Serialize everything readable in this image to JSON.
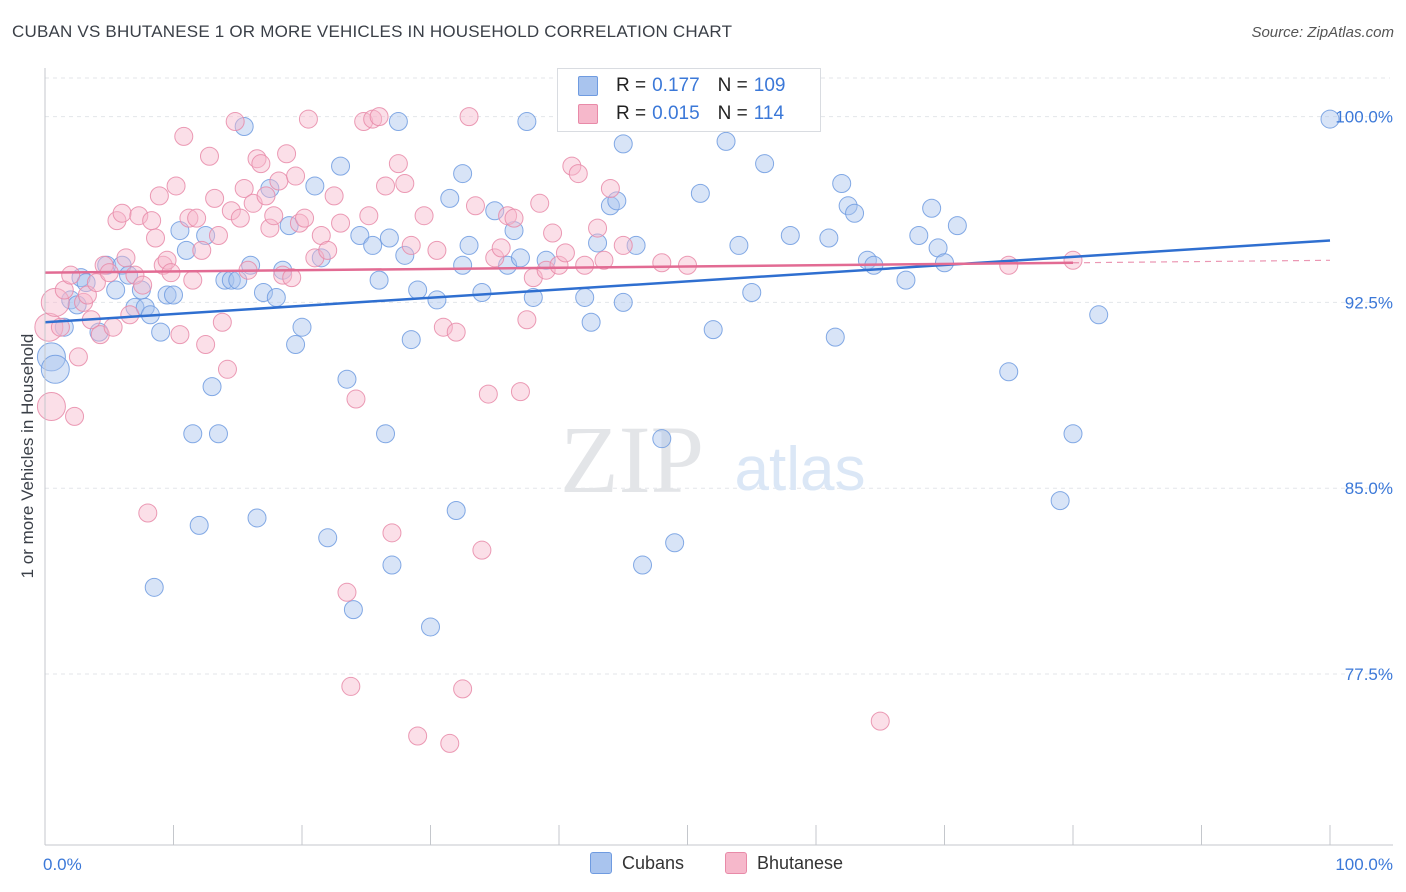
{
  "title": "CUBAN VS BHUTANESE 1 OR MORE VEHICLES IN HOUSEHOLD CORRELATION CHART",
  "source": "Source: ZipAtlas.com",
  "watermark": {
    "zip": "ZIP",
    "atlas": "atlas"
  },
  "legend": {
    "rows": [
      {
        "r_label": "R =",
        "r_value": "0.177",
        "n_label": "N =",
        "n_value": "109",
        "color": "#a9c4ee",
        "border": "#6f9be0"
      },
      {
        "r_label": "R =",
        "r_value": "0.015",
        "n_label": "N =",
        "n_value": "114",
        "color": "#f6b8cb",
        "border": "#e88aa8"
      }
    ]
  },
  "bottom_legend": [
    {
      "label": "Cubans",
      "color": "#a9c4ee",
      "border": "#6f9be0"
    },
    {
      "label": "Bhutanese",
      "color": "#f6b8cb",
      "border": "#e88aa8"
    }
  ],
  "chart_data": {
    "type": "scatter",
    "title": "CUBAN VS BHUTANESE 1 OR MORE VEHICLES IN HOUSEHOLD CORRELATION CHART",
    "xlabel": "",
    "ylabel": "1 or more Vehicles in Household",
    "xlim": [
      0,
      100
    ],
    "ylim": [
      70.6,
      101.8
    ],
    "x_tick_labels": [
      "0.0%",
      "100.0%"
    ],
    "y_ticks": [
      77.5,
      85.0,
      92.5,
      100.0
    ],
    "y_tick_labels": [
      "77.5%",
      "85.0%",
      "92.5%",
      "100.0%"
    ],
    "grid": true,
    "legend_position": "top-center",
    "series": [
      {
        "name": "Cubans",
        "color": "#6f9be0",
        "fill": "#a9c4ee",
        "trend": {
          "x": [
            0,
            100
          ],
          "y": [
            91.7,
            95.0
          ]
        },
        "points": [
          [
            0.5,
            90.3
          ],
          [
            0.8,
            89.8
          ],
          [
            1.5,
            91.5
          ],
          [
            2.0,
            92.6
          ],
          [
            2.5,
            92.4
          ],
          [
            2.8,
            93.5
          ],
          [
            3.2,
            93.3
          ],
          [
            4.2,
            91.3
          ],
          [
            4.8,
            94.0
          ],
          [
            5.5,
            93.0
          ],
          [
            6.0,
            94.0
          ],
          [
            6.5,
            93.6
          ],
          [
            7.0,
            92.3
          ],
          [
            7.5,
            93.0
          ],
          [
            7.8,
            92.3
          ],
          [
            8.2,
            92.0
          ],
          [
            8.5,
            81.0
          ],
          [
            9.0,
            91.3
          ],
          [
            9.5,
            92.8
          ],
          [
            10.0,
            92.8
          ],
          [
            10.5,
            95.4
          ],
          [
            11.0,
            94.6
          ],
          [
            11.5,
            87.2
          ],
          [
            12.0,
            83.5
          ],
          [
            12.5,
            95.2
          ],
          [
            13.0,
            89.1
          ],
          [
            13.5,
            87.2
          ],
          [
            14.0,
            93.4
          ],
          [
            14.5,
            93.4
          ],
          [
            15.0,
            93.4
          ],
          [
            15.5,
            99.6
          ],
          [
            16.0,
            94.0
          ],
          [
            16.5,
            83.8
          ],
          [
            17.0,
            92.9
          ],
          [
            17.5,
            97.1
          ],
          [
            18.0,
            92.7
          ],
          [
            18.5,
            93.8
          ],
          [
            19.0,
            95.6
          ],
          [
            19.5,
            90.8
          ],
          [
            20.0,
            91.5
          ],
          [
            21.0,
            97.2
          ],
          [
            21.5,
            94.3
          ],
          [
            22.0,
            83.0
          ],
          [
            23.0,
            98.0
          ],
          [
            23.5,
            89.4
          ],
          [
            24.0,
            80.1
          ],
          [
            24.5,
            95.2
          ],
          [
            25.5,
            94.8
          ],
          [
            26.0,
            93.4
          ],
          [
            26.5,
            87.2
          ],
          [
            27.0,
            81.9
          ],
          [
            27.5,
            99.8
          ],
          [
            28.0,
            94.4
          ],
          [
            28.5,
            91.0
          ],
          [
            29.0,
            93.0
          ],
          [
            30.0,
            79.4
          ],
          [
            30.5,
            92.6
          ],
          [
            31.5,
            96.7
          ],
          [
            32.0,
            84.1
          ],
          [
            32.5,
            94.0
          ],
          [
            33.0,
            94.8
          ],
          [
            34.0,
            92.9
          ],
          [
            35.0,
            96.2
          ],
          [
            36.0,
            94.0
          ],
          [
            36.5,
            95.4
          ],
          [
            37.0,
            94.3
          ],
          [
            37.5,
            99.8
          ],
          [
            38.0,
            92.7
          ],
          [
            39.0,
            94.2
          ],
          [
            42.0,
            92.7
          ],
          [
            42.5,
            91.7
          ],
          [
            43.0,
            94.9
          ],
          [
            44.0,
            96.4
          ],
          [
            44.5,
            96.6
          ],
          [
            45.0,
            92.5
          ],
          [
            46.0,
            94.8
          ],
          [
            46.5,
            81.9
          ],
          [
            48.0,
            87.0
          ],
          [
            49.0,
            82.8
          ],
          [
            51.0,
            96.9
          ],
          [
            52.0,
            91.4
          ],
          [
            53.0,
            99.0
          ],
          [
            54.0,
            94.8
          ],
          [
            55.0,
            92.9
          ],
          [
            56.0,
            98.1
          ],
          [
            58.0,
            95.2
          ],
          [
            61.0,
            95.1
          ],
          [
            61.5,
            91.1
          ],
          [
            62.0,
            97.3
          ],
          [
            62.5,
            96.4
          ],
          [
            63.0,
            96.1
          ],
          [
            64.0,
            94.2
          ],
          [
            64.5,
            94.0
          ],
          [
            67.0,
            93.4
          ],
          [
            68.0,
            95.2
          ],
          [
            69.0,
            96.3
          ],
          [
            69.5,
            94.7
          ],
          [
            70.0,
            94.1
          ],
          [
            71.0,
            95.6
          ],
          [
            75.0,
            89.7
          ],
          [
            79.0,
            84.5
          ],
          [
            80.0,
            87.2
          ],
          [
            82.0,
            92.0
          ],
          [
            100.0,
            99.9
          ],
          [
            32.5,
            97.7
          ],
          [
            45.0,
            98.9
          ],
          [
            26.8,
            95.1
          ]
        ]
      },
      {
        "name": "Bhutanese",
        "color": "#e88aa8",
        "fill": "#f6b8cb",
        "trend": {
          "x": [
            0,
            80
          ],
          "y": [
            93.7,
            94.1
          ]
        },
        "points": [
          [
            0.3,
            91.5
          ],
          [
            0.5,
            88.3
          ],
          [
            0.8,
            92.5
          ],
          [
            1.2,
            91.5
          ],
          [
            1.5,
            93.0
          ],
          [
            2.0,
            93.6
          ],
          [
            2.3,
            87.9
          ],
          [
            2.6,
            90.3
          ],
          [
            3.0,
            92.5
          ],
          [
            3.3,
            92.8
          ],
          [
            3.6,
            91.8
          ],
          [
            4.0,
            93.3
          ],
          [
            4.3,
            91.2
          ],
          [
            4.6,
            94.0
          ],
          [
            5.0,
            93.7
          ],
          [
            5.3,
            91.5
          ],
          [
            5.6,
            95.8
          ],
          [
            6.0,
            96.1
          ],
          [
            6.3,
            94.3
          ],
          [
            6.6,
            92.0
          ],
          [
            7.0,
            93.6
          ],
          [
            7.3,
            96.0
          ],
          [
            7.6,
            93.2
          ],
          [
            8.0,
            84.0
          ],
          [
            8.3,
            95.8
          ],
          [
            8.6,
            95.1
          ],
          [
            8.9,
            96.8
          ],
          [
            9.2,
            94.0
          ],
          [
            9.5,
            94.2
          ],
          [
            9.8,
            93.7
          ],
          [
            10.2,
            97.2
          ],
          [
            10.5,
            91.2
          ],
          [
            10.8,
            99.2
          ],
          [
            11.2,
            95.9
          ],
          [
            11.5,
            93.4
          ],
          [
            11.8,
            95.9
          ],
          [
            12.2,
            94.6
          ],
          [
            12.5,
            90.8
          ],
          [
            12.8,
            98.4
          ],
          [
            13.2,
            96.7
          ],
          [
            13.5,
            95.2
          ],
          [
            13.8,
            91.7
          ],
          [
            14.2,
            89.8
          ],
          [
            14.5,
            96.2
          ],
          [
            14.8,
            99.8
          ],
          [
            15.2,
            95.9
          ],
          [
            15.5,
            97.1
          ],
          [
            15.8,
            93.8
          ],
          [
            16.2,
            96.5
          ],
          [
            16.5,
            98.3
          ],
          [
            16.8,
            98.1
          ],
          [
            17.2,
            96.8
          ],
          [
            17.5,
            95.5
          ],
          [
            17.8,
            96.0
          ],
          [
            18.2,
            97.4
          ],
          [
            18.5,
            93.6
          ],
          [
            18.8,
            98.5
          ],
          [
            19.2,
            93.5
          ],
          [
            19.5,
            97.6
          ],
          [
            19.8,
            95.7
          ],
          [
            20.2,
            95.9
          ],
          [
            20.5,
            99.9
          ],
          [
            21.0,
            94.3
          ],
          [
            21.5,
            95.2
          ],
          [
            22.0,
            94.6
          ],
          [
            22.5,
            96.8
          ],
          [
            23.0,
            95.7
          ],
          [
            23.5,
            80.8
          ],
          [
            23.8,
            77.0
          ],
          [
            24.2,
            88.6
          ],
          [
            24.8,
            99.8
          ],
          [
            25.2,
            96.0
          ],
          [
            25.5,
            99.9
          ],
          [
            26.0,
            100.0
          ],
          [
            26.5,
            97.2
          ],
          [
            27.0,
            83.2
          ],
          [
            27.5,
            98.1
          ],
          [
            28.0,
            97.3
          ],
          [
            28.5,
            94.8
          ],
          [
            29.0,
            75.0
          ],
          [
            29.5,
            96.0
          ],
          [
            30.5,
            94.6
          ],
          [
            31.0,
            91.5
          ],
          [
            31.5,
            74.7
          ],
          [
            32.0,
            91.3
          ],
          [
            32.5,
            76.9
          ],
          [
            33.0,
            100.0
          ],
          [
            33.5,
            96.4
          ],
          [
            34.0,
            82.5
          ],
          [
            34.5,
            88.8
          ],
          [
            35.0,
            94.3
          ],
          [
            35.5,
            94.7
          ],
          [
            36.0,
            96.0
          ],
          [
            36.5,
            95.9
          ],
          [
            37.0,
            88.9
          ],
          [
            37.5,
            91.8
          ],
          [
            38.0,
            93.5
          ],
          [
            38.5,
            96.5
          ],
          [
            39.0,
            93.8
          ],
          [
            39.5,
            95.3
          ],
          [
            40.0,
            94.0
          ],
          [
            40.5,
            94.5
          ],
          [
            41.0,
            98.0
          ],
          [
            41.5,
            97.7
          ],
          [
            42.0,
            94.0
          ],
          [
            43.0,
            95.5
          ],
          [
            43.5,
            94.2
          ],
          [
            44.0,
            97.1
          ],
          [
            44.5,
            99.9
          ],
          [
            45.0,
            94.8
          ],
          [
            48.0,
            94.1
          ],
          [
            50.0,
            94.0
          ],
          [
            65.0,
            75.6
          ],
          [
            75.0,
            94.0
          ],
          [
            80.0,
            94.2
          ]
        ]
      }
    ]
  }
}
